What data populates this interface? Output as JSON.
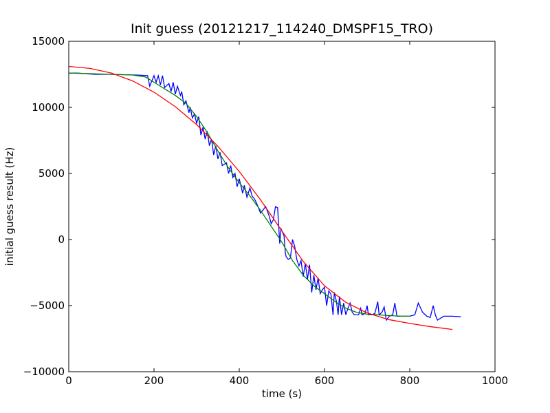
{
  "chart_data": {
    "type": "line",
    "title": "Init guess (20121217_114240_DMSPF15_TRO)",
    "xlabel": "time (s)",
    "ylabel": "initial guess result (Hz)",
    "xlim": [
      0,
      1000
    ],
    "ylim": [
      -10000,
      15000
    ],
    "x_ticks": [
      0,
      200,
      400,
      600,
      800,
      1000
    ],
    "y_ticks": [
      -10000,
      -5000,
      0,
      5000,
      10000,
      15000
    ],
    "x_tick_labels": [
      "0",
      "200",
      "400",
      "600",
      "800",
      "1000"
    ],
    "y_tick_labels": [
      "−10000",
      "−5000",
      "0",
      "5000",
      "10000",
      "15000"
    ],
    "grid": false,
    "legend": "none",
    "series": [
      {
        "color": "#0000ff",
        "points": [
          [
            0,
            12600
          ],
          [
            20,
            12600
          ],
          [
            40,
            12550
          ],
          [
            60,
            12500
          ],
          [
            100,
            12500
          ],
          [
            160,
            12450
          ],
          [
            185,
            12400
          ],
          [
            190,
            11600
          ],
          [
            200,
            12400
          ],
          [
            205,
            11900
          ],
          [
            210,
            12400
          ],
          [
            215,
            11700
          ],
          [
            220,
            12400
          ],
          [
            225,
            11500
          ],
          [
            235,
            11800
          ],
          [
            240,
            11200
          ],
          [
            245,
            11900
          ],
          [
            250,
            11000
          ],
          [
            255,
            11600
          ],
          [
            262,
            10900
          ],
          [
            265,
            11200
          ],
          [
            270,
            10200
          ],
          [
            275,
            10500
          ],
          [
            282,
            9600
          ],
          [
            285,
            10000
          ],
          [
            290,
            9200
          ],
          [
            295,
            9500
          ],
          [
            300,
            8800
          ],
          [
            305,
            9300
          ],
          [
            310,
            7900
          ],
          [
            315,
            8500
          ],
          [
            320,
            7600
          ],
          [
            325,
            8200
          ],
          [
            330,
            7100
          ],
          [
            335,
            7600
          ],
          [
            340,
            6400
          ],
          [
            345,
            7100
          ],
          [
            350,
            6100
          ],
          [
            355,
            6600
          ],
          [
            360,
            5600
          ],
          [
            370,
            5800
          ],
          [
            375,
            5000
          ],
          [
            380,
            5600
          ],
          [
            385,
            4700
          ],
          [
            390,
            5000
          ],
          [
            395,
            4000
          ],
          [
            400,
            4600
          ],
          [
            408,
            3500
          ],
          [
            412,
            4100
          ],
          [
            418,
            3200
          ],
          [
            425,
            3900
          ],
          [
            430,
            3300
          ],
          [
            435,
            3100
          ],
          [
            440,
            2800
          ],
          [
            445,
            2400
          ],
          [
            450,
            2000
          ],
          [
            455,
            2200
          ],
          [
            462,
            2500
          ],
          [
            470,
            1800
          ],
          [
            475,
            1200
          ],
          [
            480,
            1500
          ],
          [
            485,
            2500
          ],
          [
            490,
            2400
          ],
          [
            495,
            -300
          ],
          [
            498,
            800
          ],
          [
            505,
            300
          ],
          [
            508,
            -1000
          ],
          [
            510,
            -1300
          ],
          [
            515,
            -1500
          ],
          [
            520,
            -1400
          ],
          [
            525,
            0
          ],
          [
            530,
            -500
          ],
          [
            535,
            -1500
          ],
          [
            540,
            -2000
          ],
          [
            545,
            -1600
          ],
          [
            550,
            -2800
          ],
          [
            555,
            -1800
          ],
          [
            560,
            -3000
          ],
          [
            565,
            -1900
          ],
          [
            570,
            -4000
          ],
          [
            575,
            -2700
          ],
          [
            580,
            -3800
          ],
          [
            585,
            -2900
          ],
          [
            590,
            -4100
          ],
          [
            595,
            -3800
          ],
          [
            600,
            -3600
          ],
          [
            605,
            -5000
          ],
          [
            610,
            -3900
          ],
          [
            615,
            -4100
          ],
          [
            620,
            -5700
          ],
          [
            623,
            -4000
          ],
          [
            628,
            -4700
          ],
          [
            632,
            -5700
          ],
          [
            635,
            -4300
          ],
          [
            640,
            -5700
          ],
          [
            645,
            -4800
          ],
          [
            650,
            -5700
          ],
          [
            655,
            -5200
          ],
          [
            660,
            -4800
          ],
          [
            665,
            -5500
          ],
          [
            670,
            -5700
          ],
          [
            680,
            -5700
          ],
          [
            685,
            -5200
          ],
          [
            688,
            -5700
          ],
          [
            695,
            -5600
          ],
          [
            700,
            -5000
          ],
          [
            703,
            -5700
          ],
          [
            710,
            -5700
          ],
          [
            718,
            -5600
          ],
          [
            725,
            -4700
          ],
          [
            728,
            -5700
          ],
          [
            735,
            -5500
          ],
          [
            740,
            -5100
          ],
          [
            745,
            -6100
          ],
          [
            752,
            -5800
          ],
          [
            760,
            -5700
          ],
          [
            765,
            -4800
          ],
          [
            770,
            -5800
          ],
          [
            780,
            -5800
          ],
          [
            800,
            -5800
          ],
          [
            812,
            -5700
          ],
          [
            820,
            -4800
          ],
          [
            830,
            -5500
          ],
          [
            840,
            -5800
          ],
          [
            848,
            -5900
          ],
          [
            855,
            -5000
          ],
          [
            860,
            -5700
          ],
          [
            865,
            -6100
          ],
          [
            870,
            -6000
          ],
          [
            880,
            -5800
          ],
          [
            900,
            -5800
          ],
          [
            920,
            -5850
          ]
        ]
      },
      {
        "color": "#008000",
        "points": [
          [
            0,
            12600
          ],
          [
            50,
            12550
          ],
          [
            100,
            12500
          ],
          [
            150,
            12450
          ],
          [
            180,
            12300
          ],
          [
            200,
            11900
          ],
          [
            225,
            11400
          ],
          [
            250,
            10900
          ],
          [
            275,
            10300
          ],
          [
            300,
            9300
          ],
          [
            325,
            8100
          ],
          [
            350,
            6700
          ],
          [
            375,
            5400
          ],
          [
            400,
            4300
          ],
          [
            425,
            3300
          ],
          [
            450,
            2200
          ],
          [
            475,
            1000
          ],
          [
            500,
            -200
          ],
          [
            525,
            -1600
          ],
          [
            550,
            -2700
          ],
          [
            575,
            -3500
          ],
          [
            600,
            -4100
          ],
          [
            625,
            -4700
          ],
          [
            650,
            -5200
          ],
          [
            675,
            -5500
          ],
          [
            700,
            -5650
          ],
          [
            725,
            -5700
          ],
          [
            750,
            -5750
          ],
          [
            780,
            -5800
          ],
          [
            800,
            -5800
          ]
        ]
      },
      {
        "color": "#ff0000",
        "points": [
          [
            0,
            13100
          ],
          [
            50,
            12950
          ],
          [
            100,
            12600
          ],
          [
            150,
            12000
          ],
          [
            200,
            11150
          ],
          [
            250,
            10050
          ],
          [
            300,
            8700
          ],
          [
            350,
            7050
          ],
          [
            400,
            5150
          ],
          [
            450,
            3000
          ],
          [
            500,
            650
          ],
          [
            550,
            -1650
          ],
          [
            600,
            -3500
          ],
          [
            650,
            -4750
          ],
          [
            700,
            -5550
          ],
          [
            750,
            -6050
          ],
          [
            800,
            -6350
          ],
          [
            850,
            -6600
          ],
          [
            900,
            -6800
          ]
        ]
      }
    ]
  }
}
